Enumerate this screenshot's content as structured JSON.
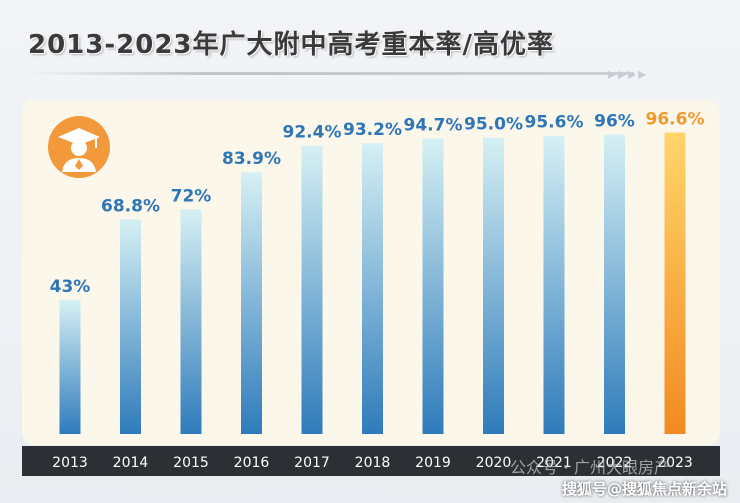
{
  "title": "2013-2023年广大附中高考重本率/高优率",
  "watermark_top": "公众号・广州大眼房产",
  "watermark_bottom": "搜狐号@搜狐焦点新余站",
  "colors": {
    "bar_blue_top": "#d6f0f4",
    "bar_blue_bottom": "#2f7bbb",
    "bar_highlight_top": "#ffd56a",
    "bar_highlight_bottom": "#f28a22",
    "label_blue": "#2e76b8",
    "label_orange": "#f2992b"
  },
  "chart_data": {
    "type": "bar",
    "categories": [
      "2013",
      "2014",
      "2015",
      "2016",
      "2017",
      "2018",
      "2019",
      "2020",
      "2021",
      "2022",
      "2023"
    ],
    "values": [
      43,
      68.8,
      72,
      83.9,
      92.4,
      93.2,
      94.7,
      95.0,
      95.6,
      96,
      96.6
    ],
    "data_labels": [
      "43%",
      "68.8%",
      "72%",
      "83.9%",
      "92.4%",
      "93.2%",
      "94.7%",
      "95.0%",
      "95.6%",
      "96%",
      "96.6%"
    ],
    "highlight_index": 10,
    "ylim": [
      0,
      100
    ],
    "grid": false,
    "xlabel": "",
    "ylabel": ""
  }
}
